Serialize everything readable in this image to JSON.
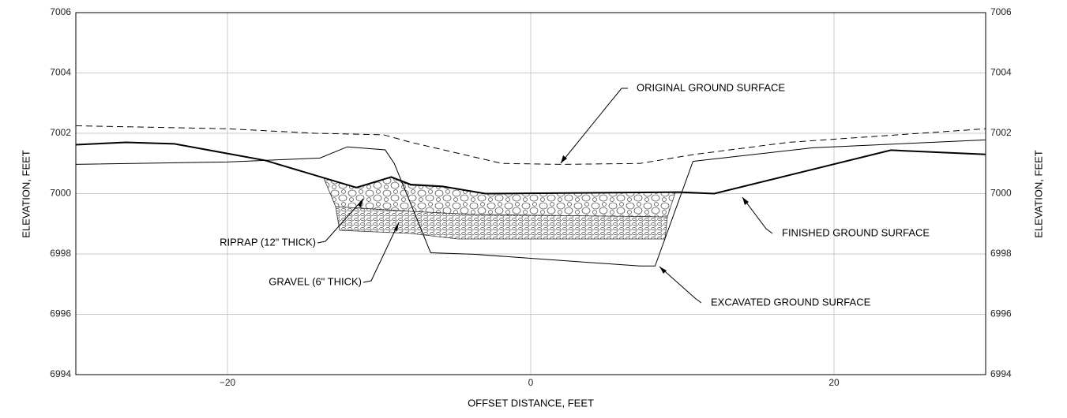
{
  "chart_data": {
    "type": "line",
    "xlabel": "OFFSET DISTANCE, FEET",
    "ylabel": "ELEVATION, FEET",
    "xlim": [
      -30,
      30
    ],
    "xticks": [
      {
        "value": -20,
        "label": "−20"
      },
      0,
      20
    ],
    "ylim": [
      6994,
      7006
    ],
    "yticks": [
      6994,
      6996,
      6998,
      7000,
      7002,
      7004,
      7006
    ],
    "grid": true,
    "series": [
      {
        "name": "ORIGINAL GROUND SURFACE",
        "color": "#000000",
        "dashed": true,
        "width": 1,
        "x": [
          -30,
          -20,
          -14.2,
          -9.7,
          -7.9,
          -1.9,
          2.0,
          7.2,
          10.8,
          17,
          30
        ],
        "values": [
          7002.25,
          7002.15,
          7002.0,
          7001.95,
          7001.7,
          7001.0,
          7000.97,
          7001.0,
          7001.3,
          7001.7,
          7002.15
        ]
      },
      {
        "name": "FINISHED GROUND SURFACE",
        "color": "#000000",
        "dashed": false,
        "width": 2,
        "x": [
          -30,
          -26.7,
          -23.5,
          -17.5,
          -11.5,
          -9.2,
          -7.9,
          -5.8,
          -3,
          9.8,
          12.1,
          23.75,
          30
        ],
        "values": [
          7001.62,
          7001.7,
          7001.65,
          7001.1,
          7000.2,
          7000.55,
          7000.3,
          7000.24,
          7000.0,
          7000.05,
          7000.0,
          7001.44,
          7001.3
        ]
      },
      {
        "name": "EXCAVATED GROUND SURFACE",
        "color": "#000000",
        "dashed": false,
        "width": 1,
        "x": [
          -30,
          -20,
          -13.9,
          -12.1,
          -9.6,
          -9.0,
          -6.6,
          -3.75,
          7.2,
          8.2,
          10.7,
          18.6,
          30
        ],
        "values": [
          7000.97,
          7001.05,
          7001.18,
          7001.55,
          7001.45,
          7001.0,
          6998.04,
          6997.99,
          6997.6,
          6997.6,
          7001.07,
          7001.52,
          7001.78
        ]
      }
    ],
    "annotations": [
      "RIPRAP (12\" THICK)",
      "GRAVEL (6\" THICK)"
    ]
  }
}
